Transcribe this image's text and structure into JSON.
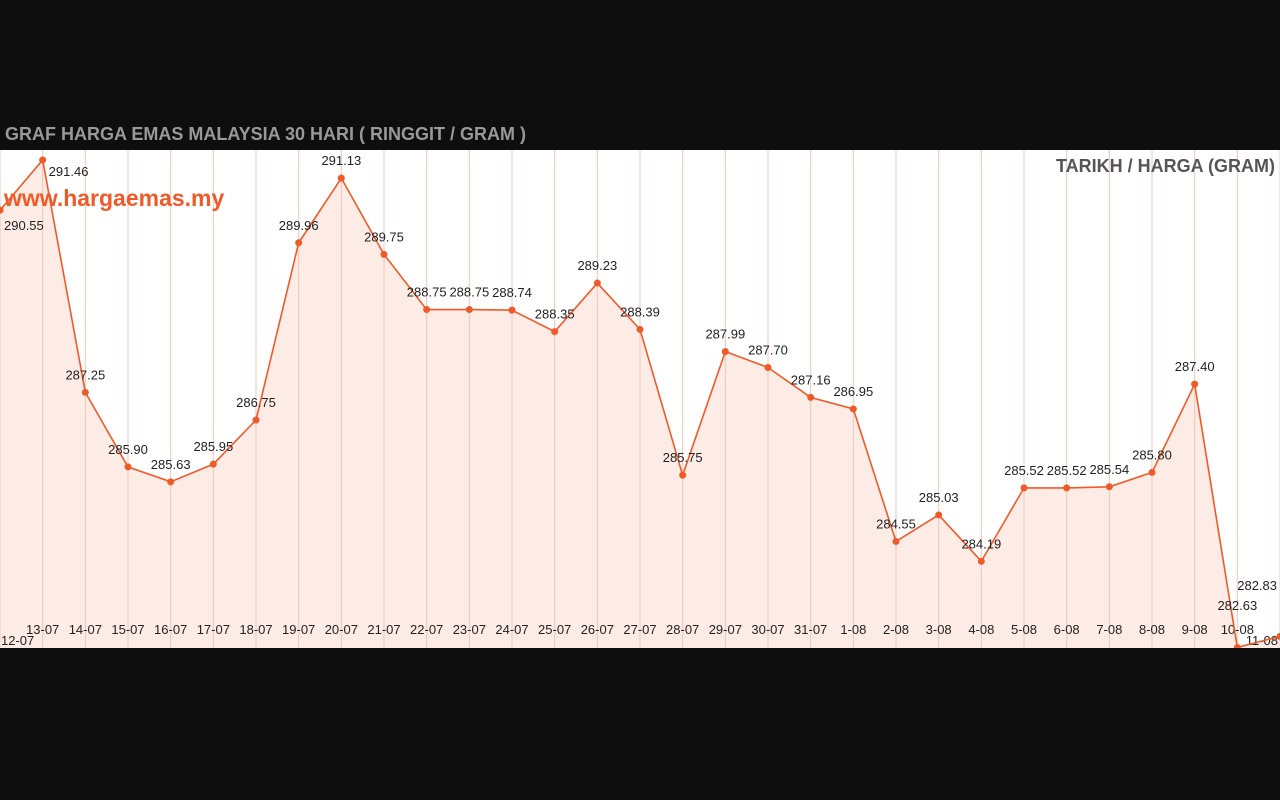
{
  "chart_data": {
    "type": "area",
    "title": "GRAF HARGA EMAS MALAYSIA 30 HARI ( RINGGIT / GRAM )",
    "legend_title": "TARIKH / HARGA (GRAM)",
    "watermark": "www.hargaemas.my",
    "categories": [
      "12-07",
      "13-07",
      "14-07",
      "15-07",
      "16-07",
      "17-07",
      "18-07",
      "19-07",
      "20-07",
      "21-07",
      "22-07",
      "23-07",
      "24-07",
      "25-07",
      "26-07",
      "27-07",
      "28-07",
      "29-07",
      "30-07",
      "31-07",
      "1-08",
      "2-08",
      "3-08",
      "4-08",
      "5-08",
      "6-08",
      "7-08",
      "8-08",
      "9-08",
      "10-08",
      "11-08"
    ],
    "values": [
      290.55,
      291.46,
      287.25,
      285.9,
      285.63,
      285.95,
      286.75,
      289.96,
      291.13,
      289.75,
      288.75,
      288.75,
      288.74,
      288.35,
      289.23,
      288.39,
      285.75,
      287.99,
      287.7,
      287.16,
      286.95,
      284.55,
      285.03,
      284.19,
      285.52,
      285.52,
      285.54,
      285.8,
      287.4,
      282.63,
      282.83
    ],
    "data_labels": [
      "290.55",
      "291.46",
      "287.25",
      "285.90",
      "285.63",
      "285.95",
      "286.75",
      "289.96",
      "291.13",
      "289.75",
      "288.75",
      "288.75",
      "288.74",
      "288.35",
      "289.23",
      "288.39",
      "285.75",
      "287.99",
      "287.70",
      "287.16",
      "286.95",
      "284.55",
      "285.03",
      "284.19",
      "285.52",
      "285.52",
      "285.54",
      "285.80",
      "287.40",
      "282.63",
      "282.83"
    ],
    "ylim": [
      282.62,
      291.64
    ],
    "grid": "vertical",
    "colors": {
      "line": "#f05a28",
      "fill": "#fdece6",
      "grid": "#f3c6b6"
    }
  }
}
